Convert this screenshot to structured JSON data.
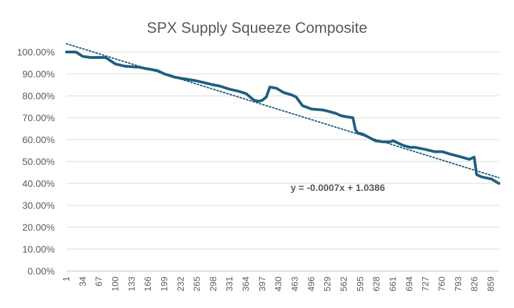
{
  "chart_data": {
    "type": "line",
    "title": "SPX Supply Squeeze Composite",
    "xlabel": "",
    "ylabel": "",
    "ylim": [
      0,
      1
    ],
    "xlim": [
      1,
      875
    ],
    "grid": true,
    "legend": "none",
    "y_ticks": [
      "0.00%",
      "10.00%",
      "20.00%",
      "30.00%",
      "40.00%",
      "50.00%",
      "60.00%",
      "70.00%",
      "80.00%",
      "90.00%",
      "100.00%"
    ],
    "x_ticks": [
      "1",
      "34",
      "67",
      "100",
      "133",
      "166",
      "199",
      "232",
      "265",
      "298",
      "331",
      "364",
      "397",
      "430",
      "463",
      "496",
      "529",
      "562",
      "595",
      "628",
      "661",
      "694",
      "727",
      "760",
      "793",
      "826",
      "859"
    ],
    "series": [
      {
        "color": "#1f5f7f",
        "x": [
          1,
          20,
          34,
          50,
          80,
          100,
          120,
          150,
          160,
          185,
          199,
          220,
          232,
          260,
          270,
          298,
          310,
          331,
          350,
          364,
          380,
          390,
          397,
          405,
          412,
          425,
          440,
          455,
          465,
          478,
          496,
          520,
          529,
          545,
          555,
          565,
          580,
          585,
          590,
          600,
          625,
          640,
          655,
          661,
          680,
          695,
          705,
          727,
          745,
          760,
          775,
          800,
          815,
          825,
          830,
          840,
          860,
          875
        ],
        "values": [
          1.0,
          1.0,
          0.98,
          0.975,
          0.975,
          0.945,
          0.935,
          0.93,
          0.925,
          0.915,
          0.9,
          0.885,
          0.88,
          0.87,
          0.865,
          0.85,
          0.845,
          0.83,
          0.82,
          0.81,
          0.78,
          0.775,
          0.78,
          0.795,
          0.84,
          0.835,
          0.815,
          0.805,
          0.795,
          0.755,
          0.74,
          0.735,
          0.73,
          0.72,
          0.71,
          0.705,
          0.7,
          0.645,
          0.63,
          0.625,
          0.595,
          0.59,
          0.59,
          0.595,
          0.575,
          0.565,
          0.565,
          0.555,
          0.545,
          0.545,
          0.535,
          0.52,
          0.51,
          0.52,
          0.44,
          0.43,
          0.42,
          0.4
        ]
      }
    ],
    "trendline": {
      "type": "linear",
      "equation": "y = -0.0007x + 1.0386",
      "slope": -0.0007,
      "intercept": 1.0386,
      "color": "#1f5f7f",
      "style": "dotted"
    }
  }
}
